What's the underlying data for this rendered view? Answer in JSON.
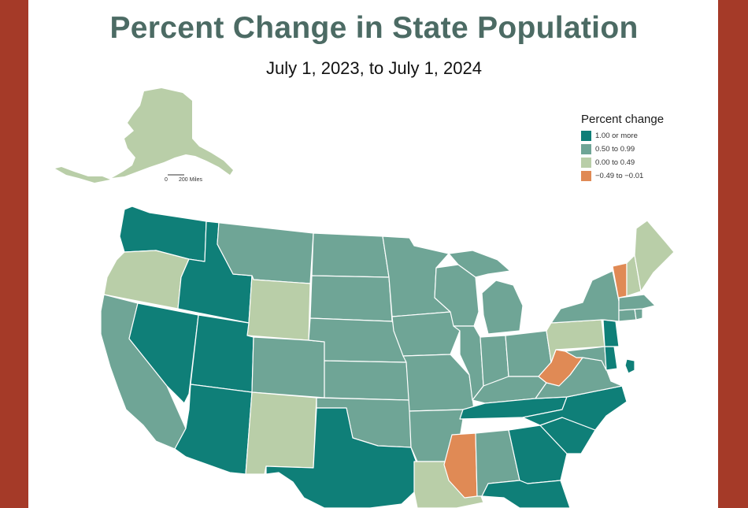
{
  "title": "Percent Change in State Population",
  "subtitle": "July 1, 2023, to July 1, 2024",
  "colors": {
    "frame": "#a53a28",
    "title": "#4c6b64",
    "cat_high": "#0f7f78",
    "cat_mid": "#6fa596",
    "cat_low": "#b9cea8",
    "cat_neg": "#e08a55"
  },
  "legend": {
    "title": "Percent change",
    "items": [
      {
        "label": "1.00 or more",
        "color": "#0f7f78"
      },
      {
        "label": "0.50 to 0.99",
        "color": "#6fa596"
      },
      {
        "label": "0.00 to 0.49",
        "color": "#b9cea8"
      },
      {
        "label": "−0.49 to −0.01",
        "color": "#e08a55"
      }
    ]
  },
  "scalebar": {
    "start": "0",
    "end": "200 Miles"
  },
  "states": {
    "WA": "1.00 or more",
    "OR": "0.00 to 0.49",
    "CA": "0.50 to 0.99",
    "NV": "1.00 or more",
    "ID": "1.00 or more",
    "MT": "0.50 to 0.99",
    "WY": "0.00 to 0.49",
    "UT": "1.00 or more",
    "AZ": "1.00 or more",
    "CO": "0.50 to 0.99",
    "NM": "0.00 to 0.49",
    "ND": "0.50 to 0.99",
    "SD": "0.50 to 0.99",
    "NE": "0.50 to 0.99",
    "KS": "0.50 to 0.99",
    "OK": "0.50 to 0.99",
    "TX": "1.00 or more",
    "MN": "0.50 to 0.99",
    "IA": "0.50 to 0.99",
    "MO": "0.50 to 0.99",
    "AR": "0.50 to 0.99",
    "LA": "0.00 to 0.49",
    "WI": "0.50 to 0.99",
    "IL": "0.50 to 0.99",
    "MI": "0.50 to 0.99",
    "IN": "0.50 to 0.99",
    "KY": "0.50 to 0.99",
    "TN": "1.00 or more",
    "MS": "−0.49 to −0.01",
    "AL": "0.50 to 0.99",
    "OH": "0.50 to 0.99",
    "WV": "−0.49 to −0.01",
    "VA": "0.50 to 0.99",
    "NC": "1.00 or more",
    "SC": "1.00 or more",
    "GA": "1.00 or more",
    "FL": "1.00 or more",
    "PA": "0.00 to 0.49",
    "NY": "0.50 to 0.99",
    "NJ": "1.00 or more",
    "DE": "1.00 or more",
    "MD": "0.50 to 0.99",
    "DC": "1.00 or more",
    "VT": "−0.49 to −0.01",
    "NH": "0.00 to 0.49",
    "ME": "0.00 to 0.49",
    "MA": "0.50 to 0.99",
    "CT": "0.50 to 0.99",
    "RI": "0.50 to 0.99",
    "AK": "0.00 to 0.49"
  }
}
